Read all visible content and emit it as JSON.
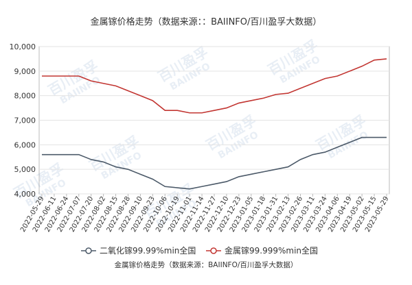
{
  "chart_data": {
    "type": "line",
    "title": "金属镓价格走势（数据来源：：BAIINFO/百川盈孚大数据）",
    "caption": "金属镓价格走势（数据来源：BAIINFO/百川盈孚大数据）",
    "watermark": {
      "cn": "百川盈孚",
      "en": "BAIINFO"
    },
    "categories": [
      "2022-05-29",
      "2022-06-11",
      "2022-06-24",
      "2022-07-07",
      "2022-07-20",
      "2022-08-02",
      "2022-08-15",
      "2022-08-28",
      "2022-09-10",
      "2022-09-23",
      "2022-10-06",
      "2022-10-19",
      "2022-11-01",
      "2022-11-14",
      "2022-11-27",
      "2022-12-10",
      "2022-12-23",
      "2023-01-05",
      "2023-01-18",
      "2023-01-31",
      "2023-02-13",
      "2023-02-26",
      "2023-03-11",
      "2023-03-24",
      "2023-04-06",
      "2023-04-19",
      "2023-05-02",
      "2023-05-15",
      "2023-05-29"
    ],
    "series": [
      {
        "name": "二氧化镓99.99%min全国",
        "color": "#4b5968",
        "values": [
          5600,
          5600,
          5600,
          5600,
          5400,
          5300,
          5100,
          5000,
          4800,
          4600,
          4300,
          4250,
          4200,
          4300,
          4400,
          4500,
          4700,
          4800,
          4900,
          5000,
          5100,
          5400,
          5600,
          5700,
          5900,
          6100,
          6300,
          6300,
          6300
        ]
      },
      {
        "name": "金属镓99.999%min全国",
        "color": "#c23531",
        "values": [
          8800,
          8800,
          8800,
          8800,
          8600,
          8500,
          8400,
          8200,
          8000,
          7800,
          7400,
          7400,
          7300,
          7300,
          7400,
          7500,
          7700,
          7800,
          7900,
          8050,
          8100,
          8300,
          8500,
          8700,
          8800,
          9000,
          9200,
          9450,
          9500
        ]
      }
    ],
    "ylim": [
      4000,
      10000
    ],
    "yticks": [
      {
        "value": 4000,
        "label": "4,000"
      },
      {
        "value": 5000,
        "label": "5,000"
      },
      {
        "value": 6000,
        "label": "6,000"
      },
      {
        "value": 7000,
        "label": "7,000"
      },
      {
        "value": 8000,
        "label": "8,000"
      },
      {
        "value": 9000,
        "label": "9,000"
      },
      {
        "value": 10000,
        "label": "10,000"
      }
    ],
    "grid": true
  }
}
